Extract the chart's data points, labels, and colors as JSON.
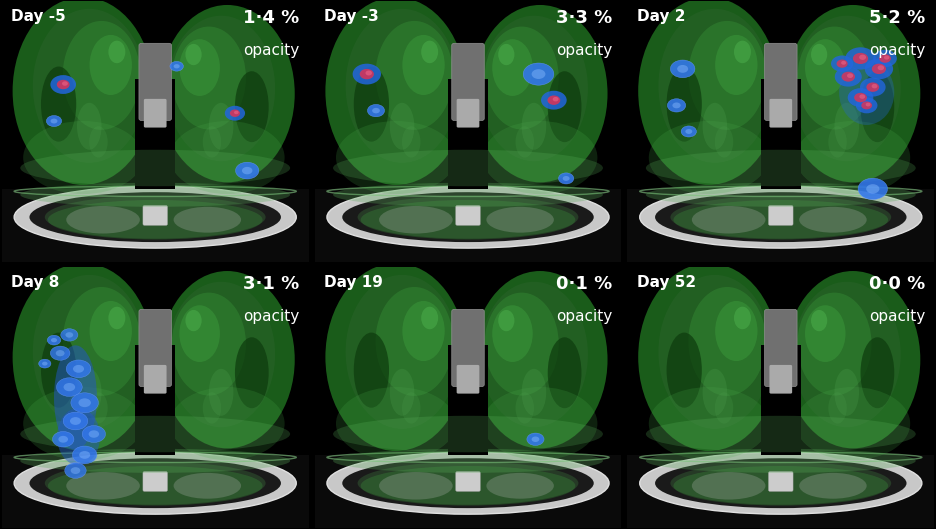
{
  "panels": [
    {
      "day": "Day -5",
      "opacity": "1·4 %",
      "row": 0,
      "col": 0
    },
    {
      "day": "Day -3",
      "opacity": "3·3 %",
      "row": 0,
      "col": 1
    },
    {
      "day": "Day 2",
      "opacity": "5·2 %",
      "row": 0,
      "col": 2
    },
    {
      "day": "Day 8",
      "opacity": "3·1 %",
      "row": 1,
      "col": 0
    },
    {
      "day": "Day 19",
      "opacity": "0·1 %",
      "row": 1,
      "col": 1
    },
    {
      "day": "Day 52",
      "opacity": "0·0 %",
      "row": 1,
      "col": 2
    }
  ],
  "background_color": "#000000",
  "opacity_label": "opacity",
  "grid_rows": 2,
  "grid_cols": 3,
  "figsize": [
    9.36,
    5.29
  ],
  "dpi": 100,
  "day_fontsize": 11,
  "opacity_pct_fontsize": 13,
  "opacity_word_fontsize": 11
}
